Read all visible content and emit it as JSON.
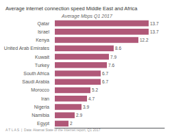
{
  "chart_data": {
    "type": "bar",
    "orientation": "horizontal",
    "title": "Average internet connection speed Middle East and Africa",
    "subtitle": "Average Mbps Q1 2017",
    "annotations": [
      "A T L A S  |  Data: Akamai State of the Internet report, Q1 2017"
    ],
    "categories": [
      "Egypt",
      "Namibia",
      "Nigeria",
      "Iran",
      "Morocco",
      "Saudi Arabia",
      "South Africa",
      "Turkey",
      "Kuwait",
      "United Arab Emirates",
      "Kenya",
      "Israel",
      "Qatar"
    ],
    "values": [
      2.0,
      2.9,
      3.9,
      4.7,
      5.2,
      6.7,
      6.7,
      7.6,
      7.9,
      8.6,
      12.2,
      13.7,
      13.7
    ],
    "color": "#b05878",
    "xlim": [
      0,
      16.0
    ],
    "data_labels": true,
    "tick_labels": "y",
    "grid": false
  }
}
